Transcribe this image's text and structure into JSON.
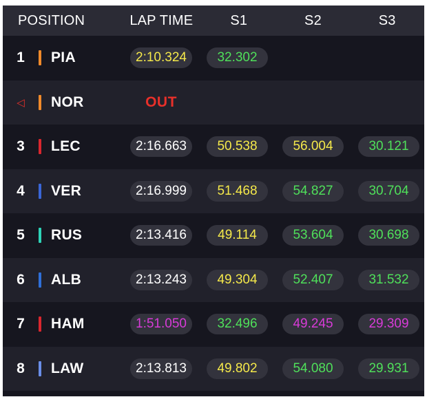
{
  "header": {
    "position": "POSITION",
    "lap_time": "LAP TIME",
    "s1": "S1",
    "s2": "S2",
    "s3": "S3"
  },
  "colors": {
    "white": "#ffffff",
    "yellow": "#f5e94a",
    "green": "#4fe05a",
    "purple": "#d83bd8",
    "out": "#e8302a"
  },
  "rows": [
    {
      "position": "1",
      "driver": "PIA",
      "team_color": "#f08a2a",
      "lap_time": {
        "value": "2:10.324",
        "color": "yellow"
      },
      "s1": {
        "value": "32.302",
        "color": "green"
      },
      "s2": null,
      "s3": null
    },
    {
      "position": "◁",
      "driver": "NOR",
      "team_color": "#f08a2a",
      "status": "OUT",
      "lap_time": null,
      "s1": null,
      "s2": null,
      "s3": null
    },
    {
      "position": "3",
      "driver": "LEC",
      "team_color": "#d9262e",
      "lap_time": {
        "value": "2:16.663",
        "color": "white"
      },
      "s1": {
        "value": "50.538",
        "color": "yellow"
      },
      "s2": {
        "value": "56.004",
        "color": "yellow"
      },
      "s3": {
        "value": "30.121",
        "color": "green"
      }
    },
    {
      "position": "4",
      "driver": "VER",
      "team_color": "#3a66d6",
      "lap_time": {
        "value": "2:16.999",
        "color": "white"
      },
      "s1": {
        "value": "51.468",
        "color": "yellow"
      },
      "s2": {
        "value": "54.827",
        "color": "green"
      },
      "s3": {
        "value": "30.704",
        "color": "green"
      }
    },
    {
      "position": "5",
      "driver": "RUS",
      "team_color": "#2ed3b7",
      "lap_time": {
        "value": "2:13.416",
        "color": "white"
      },
      "s1": {
        "value": "49.114",
        "color": "yellow"
      },
      "s2": {
        "value": "53.604",
        "color": "green"
      },
      "s3": {
        "value": "30.698",
        "color": "green"
      }
    },
    {
      "position": "6",
      "driver": "ALB",
      "team_color": "#2f6fd8",
      "lap_time": {
        "value": "2:13.243",
        "color": "white"
      },
      "s1": {
        "value": "49.304",
        "color": "yellow"
      },
      "s2": {
        "value": "52.407",
        "color": "green"
      },
      "s3": {
        "value": "31.532",
        "color": "green"
      }
    },
    {
      "position": "7",
      "driver": "HAM",
      "team_color": "#d9262e",
      "lap_time": {
        "value": "1:51.050",
        "color": "purple"
      },
      "s1": {
        "value": "32.496",
        "color": "green"
      },
      "s2": {
        "value": "49.245",
        "color": "purple"
      },
      "s3": {
        "value": "29.309",
        "color": "purple"
      }
    },
    {
      "position": "8",
      "driver": "LAW",
      "team_color": "#6a8ee8",
      "lap_time": {
        "value": "2:13.813",
        "color": "white"
      },
      "s1": {
        "value": "49.802",
        "color": "yellow"
      },
      "s2": {
        "value": "54.080",
        "color": "green"
      },
      "s3": {
        "value": "29.931",
        "color": "green"
      }
    }
  ]
}
